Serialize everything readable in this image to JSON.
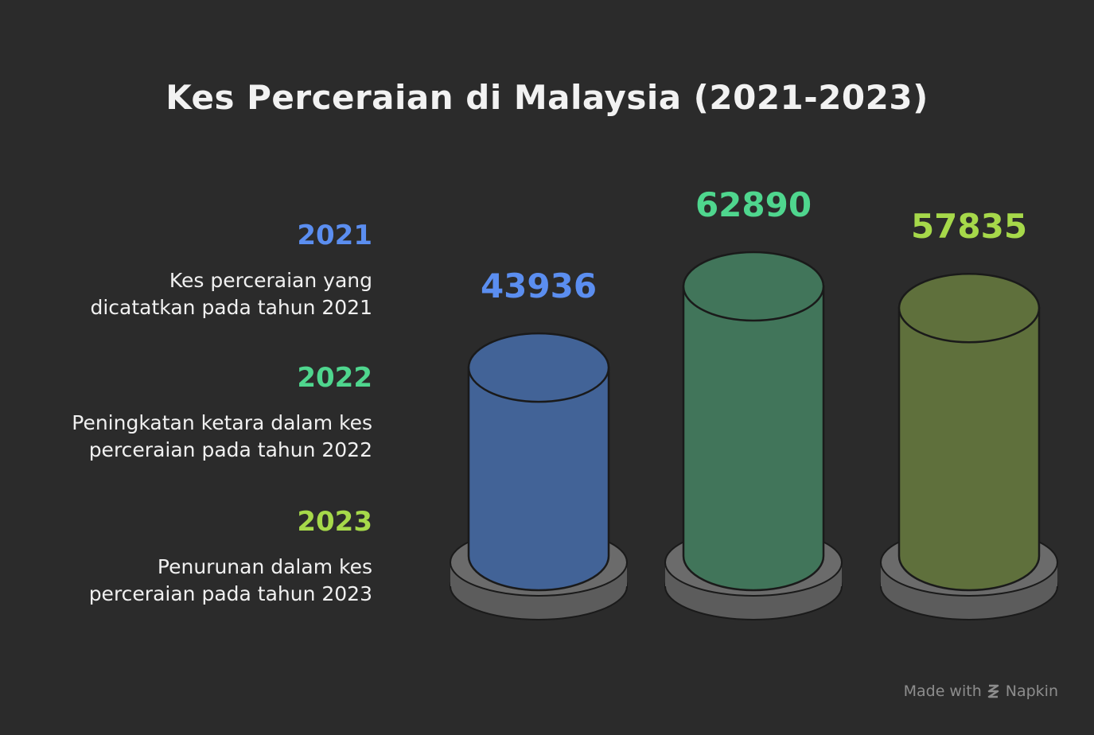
{
  "title": "Kes Perceraian di Malaysia (2021-2023)",
  "legend": [
    {
      "year": "2021",
      "description_line1": "Kes perceraian yang",
      "description_line2": "dicatatkan pada tahun 2021"
    },
    {
      "year": "2022",
      "description_line1": "Peningkatan ketara dalam kes",
      "description_line2": "perceraian pada tahun 2022"
    },
    {
      "year": "2023",
      "description_line1": "Penurunan dalam kes",
      "description_line2": "perceraian pada tahun 2023"
    }
  ],
  "watermark": {
    "prefix": "Made with",
    "brand": "Napkin",
    "icon": "napkin-logo-icon"
  },
  "chart_data": {
    "type": "bar",
    "categories": [
      "2021",
      "2022",
      "2023"
    ],
    "values": [
      43936,
      62890,
      57835
    ],
    "colors": {
      "label": [
        "#5b8ef0",
        "#4fd68e",
        "#a6d94a"
      ],
      "body": [
        "#426397",
        "#41755a",
        "#5f703c"
      ],
      "base": "#6b6b6b",
      "background": "#2b2b2b"
    }
  }
}
